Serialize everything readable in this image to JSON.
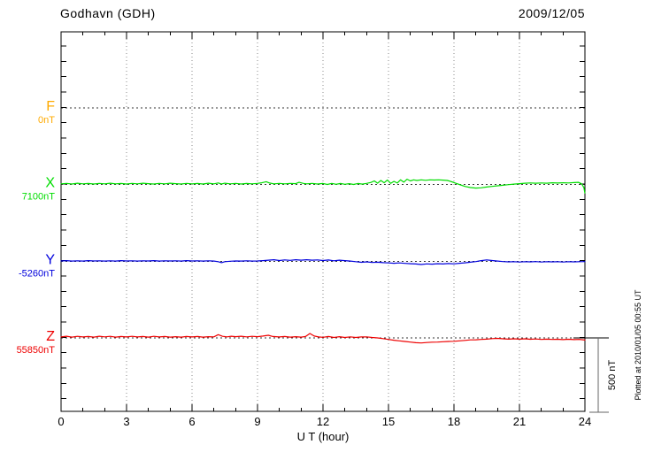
{
  "header": {
    "station": "Godhavn (GDH)",
    "date": "2009/12/05"
  },
  "xaxis": {
    "label": "U T (hour)",
    "major_ticks": [
      0,
      3,
      6,
      9,
      12,
      15,
      18,
      21,
      24
    ],
    "minor_step_hours": 1,
    "range": [
      0,
      24
    ]
  },
  "scalebar": {
    "label": "500 nT",
    "value_nT": 500
  },
  "footnote": "Plotted at 2010/01/05 00:55 UT",
  "colors": {
    "F": "#FFAA00",
    "X": "#00DD00",
    "Y": "#0000DD",
    "Z": "#EE0000",
    "axis": "#000000",
    "grid": "#888888",
    "baseline_dots": "#333333"
  },
  "chart_data": {
    "type": "line",
    "title": "Godhavn (GDH)",
    "subtitle": "2009/12/05",
    "xlabel": "U T (hour)",
    "ylabel": "",
    "x_range": [
      0,
      24
    ],
    "x_major_ticks": [
      0,
      3,
      6,
      9,
      12,
      15,
      18,
      21,
      24
    ],
    "x_minor_step": 1,
    "y_tick_step_nT": 100,
    "scale_bar_nT": 500,
    "grid": "dotted vertical lines every 3 hours; dotted horizontal baseline per component",
    "legend_position": "left of axis, one label per stacked trace",
    "units": "nT",
    "note": "Stacked magnetogram; each series plotted as offset (delta nT) from its labeled baseline value",
    "series": [
      {
        "name": "F",
        "baseline_label": "0nT",
        "baseline_nT": 0,
        "color": "#FFAA00",
        "points": []
      },
      {
        "name": "X",
        "baseline_label": "7100nT",
        "baseline_nT": 7100,
        "color": "#00DD00",
        "points": [
          [
            0,
            5
          ],
          [
            0.25,
            8
          ],
          [
            0.5,
            4
          ],
          [
            0.75,
            9
          ],
          [
            1,
            5
          ],
          [
            1.25,
            7
          ],
          [
            1.5,
            4
          ],
          [
            1.75,
            8
          ],
          [
            2,
            5
          ],
          [
            2.25,
            9
          ],
          [
            2.5,
            5
          ],
          [
            2.75,
            7
          ],
          [
            3,
            4
          ],
          [
            3.25,
            8
          ],
          [
            3.5,
            5
          ],
          [
            3.75,
            9
          ],
          [
            4,
            6
          ],
          [
            4.25,
            4
          ],
          [
            4.5,
            8
          ],
          [
            4.75,
            5
          ],
          [
            5,
            9
          ],
          [
            5.25,
            6
          ],
          [
            5.5,
            4
          ],
          [
            5.75,
            8
          ],
          [
            6,
            5
          ],
          [
            6.25,
            7
          ],
          [
            6.5,
            4
          ],
          [
            6.75,
            9
          ],
          [
            7,
            5
          ],
          [
            7.2,
            11
          ],
          [
            7.35,
            4
          ],
          [
            7.5,
            9
          ],
          [
            7.75,
            5
          ],
          [
            8,
            8
          ],
          [
            8.25,
            4
          ],
          [
            8.5,
            7
          ],
          [
            8.75,
            5
          ],
          [
            9,
            8
          ],
          [
            9.2,
            12
          ],
          [
            9.4,
            19
          ],
          [
            9.55,
            10
          ],
          [
            9.75,
            5
          ],
          [
            10,
            8
          ],
          [
            10.25,
            5
          ],
          [
            10.5,
            8
          ],
          [
            10.75,
            6
          ],
          [
            10.9,
            15
          ],
          [
            11.1,
            8
          ],
          [
            11.25,
            5
          ],
          [
            11.5,
            8
          ],
          [
            11.75,
            4
          ],
          [
            12,
            7
          ],
          [
            12.2,
            1
          ],
          [
            12.4,
            8
          ],
          [
            12.6,
            2
          ],
          [
            12.8,
            7
          ],
          [
            13,
            2
          ],
          [
            13.2,
            6
          ],
          [
            13.4,
            1
          ],
          [
            13.6,
            7
          ],
          [
            13.8,
            3
          ],
          [
            14,
            8
          ],
          [
            14.2,
            14
          ],
          [
            14.35,
            24
          ],
          [
            14.5,
            9
          ],
          [
            14.65,
            27
          ],
          [
            14.8,
            12
          ],
          [
            14.95,
            30
          ],
          [
            15.1,
            8
          ],
          [
            15.25,
            21
          ],
          [
            15.4,
            10
          ],
          [
            15.55,
            31
          ],
          [
            15.7,
            16
          ],
          [
            15.85,
            35
          ],
          [
            16,
            24
          ],
          [
            16.15,
            31
          ],
          [
            16.3,
            27
          ],
          [
            16.5,
            31
          ],
          [
            16.7,
            28
          ],
          [
            16.9,
            31
          ],
          [
            17.1,
            30
          ],
          [
            17.3,
            31
          ],
          [
            17.5,
            29
          ],
          [
            17.7,
            27
          ],
          [
            17.9,
            18
          ],
          [
            18.1,
            8
          ],
          [
            18.3,
            -2
          ],
          [
            18.5,
            -12
          ],
          [
            18.75,
            -19
          ],
          [
            19,
            -23
          ],
          [
            19.25,
            -21
          ],
          [
            19.5,
            -16
          ],
          [
            19.75,
            -12
          ],
          [
            20,
            -8
          ],
          [
            20.25,
            -4
          ],
          [
            20.5,
            0
          ],
          [
            20.75,
            3
          ],
          [
            21,
            6
          ],
          [
            21.25,
            9
          ],
          [
            21.5,
            11
          ],
          [
            21.75,
            9
          ],
          [
            22,
            11
          ],
          [
            22.25,
            9
          ],
          [
            22.5,
            12
          ],
          [
            22.75,
            10
          ],
          [
            23,
            12
          ],
          [
            23.25,
            11
          ],
          [
            23.5,
            13
          ],
          [
            23.7,
            15
          ],
          [
            23.85,
            5
          ],
          [
            23.95,
            -20
          ],
          [
            24,
            -55
          ]
        ]
      },
      {
        "name": "Y",
        "baseline_label": "-5260nT",
        "baseline_nT": -5260,
        "color": "#0000DD",
        "points": [
          [
            0,
            2
          ],
          [
            0.25,
            4
          ],
          [
            0.5,
            1
          ],
          [
            0.75,
            3
          ],
          [
            1,
            1
          ],
          [
            1.25,
            4
          ],
          [
            1.5,
            2
          ],
          [
            1.75,
            3
          ],
          [
            2,
            1
          ],
          [
            2.25,
            3
          ],
          [
            2.5,
            1
          ],
          [
            2.75,
            4
          ],
          [
            3,
            2
          ],
          [
            3.25,
            3
          ],
          [
            3.5,
            1
          ],
          [
            3.75,
            3
          ],
          [
            4,
            2
          ],
          [
            4.25,
            4
          ],
          [
            4.5,
            1
          ],
          [
            4.75,
            3
          ],
          [
            5,
            2
          ],
          [
            5.25,
            3
          ],
          [
            5.5,
            1
          ],
          [
            5.75,
            4
          ],
          [
            6,
            2
          ],
          [
            6.25,
            3
          ],
          [
            6.5,
            1
          ],
          [
            6.75,
            3
          ],
          [
            7,
            1
          ],
          [
            7.2,
            -3
          ],
          [
            7.35,
            -9
          ],
          [
            7.5,
            -3
          ],
          [
            7.75,
            0
          ],
          [
            8,
            2
          ],
          [
            8.25,
            1
          ],
          [
            8.5,
            3
          ],
          [
            8.75,
            1
          ],
          [
            9,
            2
          ],
          [
            9.25,
            4
          ],
          [
            9.5,
            7
          ],
          [
            9.75,
            10
          ],
          [
            10,
            5
          ],
          [
            10.25,
            9
          ],
          [
            10.5,
            6
          ],
          [
            10.75,
            10
          ],
          [
            11,
            7
          ],
          [
            11.25,
            10
          ],
          [
            11.5,
            7
          ],
          [
            11.75,
            9
          ],
          [
            12,
            5
          ],
          [
            12.25,
            8
          ],
          [
            12.5,
            3
          ],
          [
            12.75,
            7
          ],
          [
            13,
            4
          ],
          [
            13.25,
            1
          ],
          [
            13.5,
            -3
          ],
          [
            13.75,
            -7
          ],
          [
            14,
            -4
          ],
          [
            14.25,
            -8
          ],
          [
            14.5,
            -6
          ],
          [
            14.75,
            -9
          ],
          [
            15,
            -11
          ],
          [
            15.25,
            -13
          ],
          [
            15.5,
            -11
          ],
          [
            15.75,
            -14
          ],
          [
            16,
            -16
          ],
          [
            16.25,
            -18
          ],
          [
            16.5,
            -21
          ],
          [
            16.75,
            -17
          ],
          [
            17,
            -19
          ],
          [
            17.25,
            -16
          ],
          [
            17.5,
            -18
          ],
          [
            17.75,
            -15
          ],
          [
            18,
            -17
          ],
          [
            18.25,
            -13
          ],
          [
            18.5,
            -10
          ],
          [
            18.75,
            -6
          ],
          [
            19,
            -2
          ],
          [
            19.25,
            4
          ],
          [
            19.5,
            9
          ],
          [
            19.75,
            5
          ],
          [
            20,
            1
          ],
          [
            20.25,
            -2
          ],
          [
            20.5,
            -4
          ],
          [
            20.75,
            -3
          ],
          [
            21,
            -5
          ],
          [
            21.25,
            -3
          ],
          [
            21.5,
            -4
          ],
          [
            21.75,
            -2
          ],
          [
            22,
            -5
          ],
          [
            22.25,
            -3
          ],
          [
            22.5,
            -4
          ],
          [
            22.75,
            -3
          ],
          [
            23,
            -5
          ],
          [
            23.25,
            -3
          ],
          [
            23.5,
            -4
          ],
          [
            23.75,
            -3
          ],
          [
            24,
            -2
          ]
        ]
      },
      {
        "name": "Z",
        "baseline_label": "55850nT",
        "baseline_nT": 55850,
        "color": "#EE0000",
        "points": [
          [
            0,
            6
          ],
          [
            0.25,
            11
          ],
          [
            0.5,
            5
          ],
          [
            0.75,
            10
          ],
          [
            1,
            6
          ],
          [
            1.25,
            9
          ],
          [
            1.5,
            5
          ],
          [
            1.75,
            11
          ],
          [
            2,
            7
          ],
          [
            2.25,
            10
          ],
          [
            2.5,
            5
          ],
          [
            2.75,
            9
          ],
          [
            3,
            6
          ],
          [
            3.25,
            10
          ],
          [
            3.5,
            6
          ],
          [
            3.75,
            9
          ],
          [
            4,
            5
          ],
          [
            4.25,
            10
          ],
          [
            4.5,
            6
          ],
          [
            4.75,
            9
          ],
          [
            5,
            5
          ],
          [
            5.25,
            8
          ],
          [
            5.5,
            5
          ],
          [
            5.75,
            9
          ],
          [
            6,
            6
          ],
          [
            6.25,
            9
          ],
          [
            6.5,
            5
          ],
          [
            6.75,
            8
          ],
          [
            7,
            7
          ],
          [
            7.2,
            21
          ],
          [
            7.4,
            10
          ],
          [
            7.6,
            7
          ],
          [
            7.8,
            11
          ],
          [
            8,
            8
          ],
          [
            8.25,
            11
          ],
          [
            8.5,
            7
          ],
          [
            8.75,
            10
          ],
          [
            9,
            8
          ],
          [
            9.25,
            12
          ],
          [
            9.5,
            17
          ],
          [
            9.7,
            9
          ],
          [
            10,
            6
          ],
          [
            10.25,
            9
          ],
          [
            10.5,
            5
          ],
          [
            10.75,
            8
          ],
          [
            11,
            5
          ],
          [
            11.2,
            9
          ],
          [
            11.4,
            29
          ],
          [
            11.6,
            12
          ],
          [
            11.8,
            6
          ],
          [
            12,
            4
          ],
          [
            12.25,
            9
          ],
          [
            12.5,
            3
          ],
          [
            12.75,
            8
          ],
          [
            13,
            3
          ],
          [
            13.25,
            7
          ],
          [
            13.5,
            3
          ],
          [
            13.75,
            6
          ],
          [
            14,
            7
          ],
          [
            14.25,
            3
          ],
          [
            14.5,
            0
          ],
          [
            14.75,
            -5
          ],
          [
            15,
            -10
          ],
          [
            15.25,
            -15
          ],
          [
            15.5,
            -19
          ],
          [
            15.75,
            -23
          ],
          [
            16,
            -27
          ],
          [
            16.25,
            -31
          ],
          [
            16.5,
            -33
          ],
          [
            16.75,
            -30
          ],
          [
            17,
            -28
          ],
          [
            17.25,
            -27
          ],
          [
            17.5,
            -25
          ],
          [
            17.75,
            -23
          ],
          [
            18,
            -22
          ],
          [
            18.25,
            -19
          ],
          [
            18.5,
            -16
          ],
          [
            18.75,
            -13
          ],
          [
            19,
            -12
          ],
          [
            19.25,
            -10
          ],
          [
            19.5,
            -8
          ],
          [
            19.75,
            -5
          ],
          [
            20,
            -3
          ],
          [
            20.25,
            -6
          ],
          [
            20.5,
            -8
          ],
          [
            20.75,
            -6
          ],
          [
            21,
            -8
          ],
          [
            21.25,
            -6
          ],
          [
            21.5,
            -9
          ],
          [
            21.75,
            -7
          ],
          [
            22,
            -10
          ],
          [
            22.25,
            -8
          ],
          [
            22.5,
            -10
          ],
          [
            22.75,
            -9
          ],
          [
            23,
            -11
          ],
          [
            23.25,
            -9
          ],
          [
            23.5,
            -11
          ],
          [
            23.75,
            -10
          ],
          [
            24,
            -14
          ]
        ]
      }
    ]
  }
}
